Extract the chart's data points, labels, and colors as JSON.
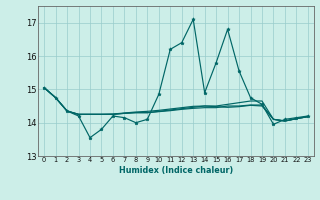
{
  "xlabel": "Humidex (Indice chaleur)",
  "x": [
    0,
    1,
    2,
    3,
    4,
    5,
    6,
    7,
    8,
    9,
    10,
    11,
    12,
    13,
    14,
    15,
    16,
    17,
    18,
    19,
    20,
    21,
    22,
    23
  ],
  "line_main": [
    15.05,
    14.75,
    14.35,
    14.2,
    13.55,
    13.8,
    14.2,
    14.15,
    14.0,
    14.1,
    14.85,
    16.2,
    16.4,
    17.1,
    14.9,
    15.8,
    16.8,
    15.55,
    14.75,
    14.55,
    13.95,
    14.1,
    14.15,
    14.2
  ],
  "line_s1": [
    15.05,
    14.75,
    14.35,
    14.25,
    14.25,
    14.25,
    14.25,
    14.28,
    14.3,
    14.3,
    14.33,
    14.36,
    14.4,
    14.43,
    14.45,
    14.45,
    14.5,
    14.5,
    14.53,
    14.53,
    14.1,
    14.05,
    14.12,
    14.18
  ],
  "line_s2": [
    15.05,
    14.75,
    14.35,
    14.25,
    14.25,
    14.25,
    14.25,
    14.28,
    14.3,
    14.3,
    14.34,
    14.38,
    14.42,
    14.46,
    14.5,
    14.5,
    14.55,
    14.6,
    14.65,
    14.65,
    14.1,
    14.05,
    14.12,
    14.18
  ],
  "line_s3": [
    15.05,
    14.75,
    14.35,
    14.25,
    14.25,
    14.25,
    14.26,
    14.29,
    14.32,
    14.34,
    14.37,
    14.41,
    14.45,
    14.49,
    14.5,
    14.48,
    14.46,
    14.48,
    14.52,
    14.5,
    14.1,
    14.05,
    14.12,
    14.18
  ],
  "bg_color": "#cceee8",
  "grid_color": "#99cccc",
  "line_color": "#006666",
  "ylim": [
    13.0,
    17.5
  ],
  "yticks": [
    13,
    14,
    15,
    16,
    17
  ],
  "xticks": [
    0,
    1,
    2,
    3,
    4,
    5,
    6,
    7,
    8,
    9,
    10,
    11,
    12,
    13,
    14,
    15,
    16,
    17,
    18,
    19,
    20,
    21,
    22,
    23
  ]
}
